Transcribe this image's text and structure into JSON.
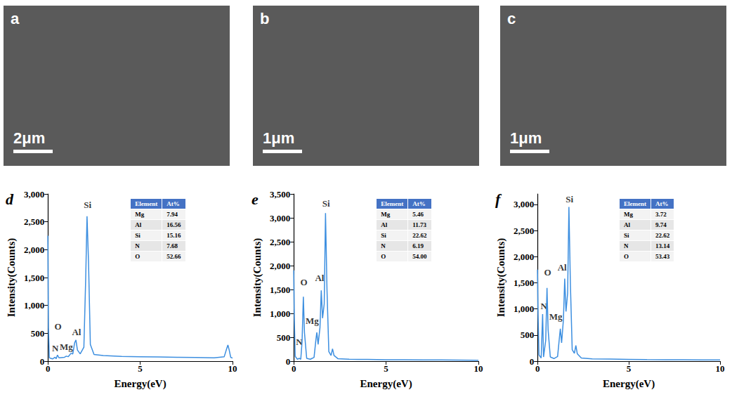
{
  "images": [
    {
      "panel": "a",
      "scale_bar": "2μm"
    },
    {
      "panel": "b",
      "scale_bar": "1μm"
    },
    {
      "panel": "c",
      "scale_bar": "1μm"
    }
  ],
  "chart_data": [
    {
      "panel": "d",
      "type": "line",
      "x_label": "Energy(eV)",
      "y_label": "Intensity(Counts)",
      "xlim": [
        0,
        10
      ],
      "xticks": [
        0,
        5,
        10
      ],
      "ylim": [
        0,
        3000
      ],
      "yticks": [
        0,
        500,
        1000,
        1500,
        2000,
        2500,
        3000
      ],
      "grid": false,
      "color": "#3d8fe0",
      "x": [
        0,
        0.03,
        0.08,
        0.25,
        0.39,
        0.45,
        0.52,
        0.6,
        0.9,
        1.0,
        1.1,
        1.25,
        1.35,
        1.45,
        1.52,
        1.6,
        1.75,
        1.95,
        2.05,
        2.12,
        2.2,
        2.3,
        2.5,
        3,
        4,
        5,
        6,
        7,
        8,
        9,
        9.55,
        9.68,
        9.75,
        9.82,
        9.9,
        10
      ],
      "values": [
        2250,
        600,
        60,
        40,
        70,
        45,
        110,
        60,
        70,
        90,
        80,
        140,
        130,
        330,
        380,
        200,
        130,
        250,
        1500,
        2600,
        1800,
        300,
        120,
        100,
        85,
        80,
        75,
        70,
        65,
        60,
        80,
        220,
        290,
        200,
        70,
        55
      ],
      "annotations": [
        {
          "text": "N",
          "x": 0.4,
          "y": 230
        },
        {
          "text": "O",
          "x": 0.55,
          "y": 620
        },
        {
          "text": "Mg",
          "x": 1.0,
          "y": 260
        },
        {
          "text": "Al",
          "x": 1.55,
          "y": 520
        },
        {
          "text": "Si",
          "x": 2.15,
          "y": 2800
        }
      ],
      "table": {
        "header": [
          "Element",
          "At%"
        ],
        "rows": [
          [
            "Mg",
            "7.94"
          ],
          [
            "Al",
            "16.56"
          ],
          [
            "Si",
            "15.16"
          ],
          [
            "N",
            "7.68"
          ],
          [
            "O",
            "52.66"
          ]
        ]
      }
    },
    {
      "panel": "e",
      "type": "line",
      "x_label": "Energy(eV)",
      "y_label": "Intensity(Counts)",
      "xlim": [
        0,
        10
      ],
      "xticks": [
        0,
        5,
        10
      ],
      "ylim": [
        0,
        3500
      ],
      "yticks": [
        0,
        500,
        1000,
        1500,
        2000,
        2500,
        3000,
        3500
      ],
      "grid": false,
      "color": "#3d8fe0",
      "x": [
        0,
        0.03,
        0.08,
        0.2,
        0.3,
        0.38,
        0.45,
        0.52,
        0.58,
        0.7,
        0.9,
        1.1,
        1.2,
        1.25,
        1.32,
        1.42,
        1.49,
        1.56,
        1.65,
        1.72,
        1.8,
        1.9,
        2.02,
        2.1,
        2.18,
        2.4,
        3,
        4,
        5,
        6,
        7,
        8,
        9,
        10
      ],
      "values": [
        1900,
        900,
        100,
        40,
        60,
        40,
        400,
        1350,
        600,
        60,
        40,
        80,
        450,
        600,
        350,
        700,
        1480,
        900,
        1200,
        3100,
        1500,
        200,
        120,
        260,
        120,
        50,
        40,
        35,
        30,
        28,
        25,
        25,
        22,
        20
      ],
      "annotations": [
        {
          "text": "N",
          "x": 0.3,
          "y": 400
        },
        {
          "text": "O",
          "x": 0.55,
          "y": 1650
        },
        {
          "text": "Mg",
          "x": 1.0,
          "y": 850
        },
        {
          "text": "Al",
          "x": 1.4,
          "y": 1750
        },
        {
          "text": "Si",
          "x": 1.75,
          "y": 3300
        }
      ],
      "table": {
        "header": [
          "Element",
          "At%"
        ],
        "rows": [
          [
            "Mg",
            "5.46"
          ],
          [
            "Al",
            "11.73"
          ],
          [
            "Si",
            "22.62"
          ],
          [
            "N",
            "6.19"
          ],
          [
            "O",
            "54.00"
          ]
        ]
      }
    },
    {
      "panel": "f",
      "type": "line",
      "x_label": "Energy(eV)",
      "y_label": "Intensity(Counts)",
      "xlim": [
        0,
        10
      ],
      "xticks": [
        0,
        5,
        10
      ],
      "ylim": [
        0,
        3200
      ],
      "yticks": [
        0,
        500,
        1000,
        1500,
        2000,
        2500,
        3000
      ],
      "grid": false,
      "color": "#3d8fe0",
      "x": [
        0,
        0.03,
        0.08,
        0.2,
        0.28,
        0.33,
        0.45,
        0.52,
        0.58,
        0.7,
        0.9,
        1.1,
        1.2,
        1.25,
        1.32,
        1.42,
        1.49,
        1.56,
        1.65,
        1.72,
        1.8,
        1.9,
        2.02,
        2.1,
        2.18,
        2.4,
        3,
        4,
        5,
        6,
        7,
        8,
        9,
        10
      ],
      "values": [
        1750,
        900,
        120,
        60,
        900,
        80,
        400,
        1400,
        600,
        80,
        50,
        90,
        450,
        620,
        350,
        800,
        1580,
        950,
        1300,
        2950,
        1500,
        220,
        150,
        300,
        140,
        60,
        45,
        40,
        35,
        30,
        28,
        26,
        24,
        22
      ],
      "annotations": [
        {
          "text": "N",
          "x": 0.35,
          "y": 1050
        },
        {
          "text": "O",
          "x": 0.55,
          "y": 1700
        },
        {
          "text": "Mg",
          "x": 1.0,
          "y": 850
        },
        {
          "text": "Al",
          "x": 1.35,
          "y": 1800
        },
        {
          "text": "Si",
          "x": 1.75,
          "y": 3100
        }
      ],
      "table": {
        "header": [
          "Element",
          "At%"
        ],
        "rows": [
          [
            "Mg",
            "3.72"
          ],
          [
            "Al",
            "9.74"
          ],
          [
            "Si",
            "22.62"
          ],
          [
            "N",
            "13.14"
          ],
          [
            "O",
            "53.43"
          ]
        ]
      }
    }
  ]
}
